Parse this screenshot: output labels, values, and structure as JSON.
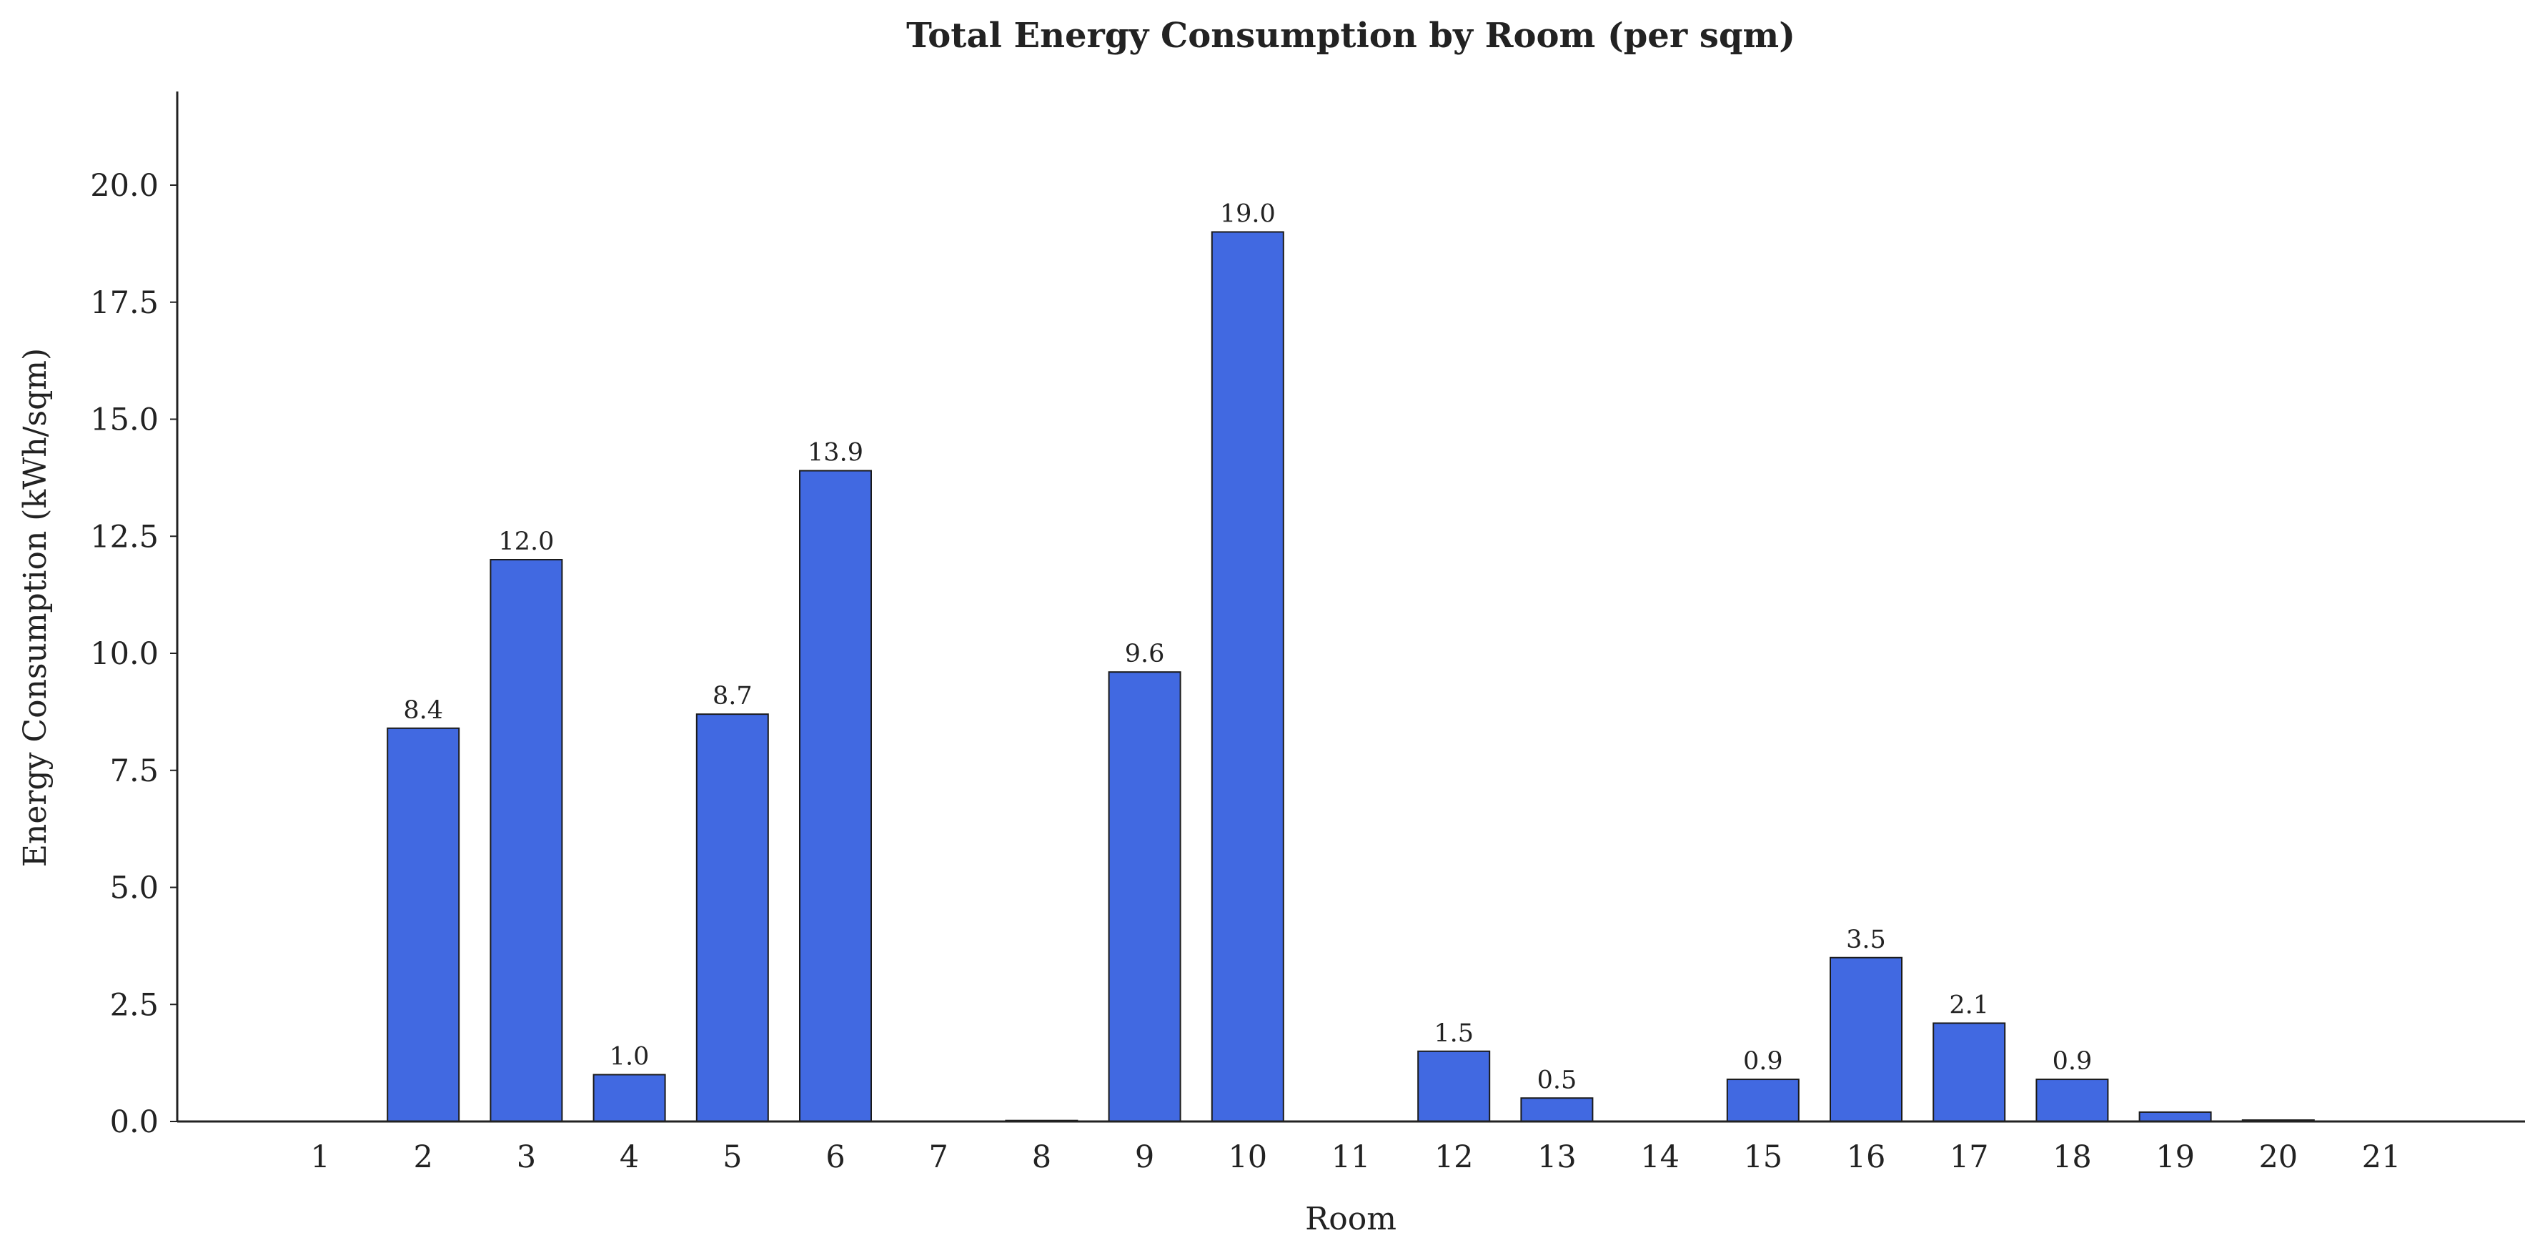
{
  "chart_data": {
    "type": "bar",
    "title": "Total Energy Consumption by Room (per sqm)",
    "xlabel": "Room",
    "ylabel": "Energy Consumption (kWh/sqm)",
    "categories": [
      "1",
      "2",
      "3",
      "4",
      "5",
      "6",
      "7",
      "8",
      "9",
      "10",
      "11",
      "12",
      "13",
      "14",
      "15",
      "16",
      "17",
      "18",
      "19",
      "20",
      "21"
    ],
    "values": [
      0,
      8.4,
      12.0,
      1.0,
      8.7,
      13.9,
      0,
      0.02,
      9.6,
      19.0,
      0,
      1.5,
      0.5,
      0,
      0.9,
      3.5,
      2.1,
      0.9,
      0.2,
      0.03,
      0
    ],
    "data_labels": [
      "",
      "8.4",
      "12.0",
      "1.0",
      "8.7",
      "13.9",
      "",
      "",
      "9.6",
      "19.0",
      "",
      "1.5",
      "0.5",
      "",
      "0.9",
      "3.5",
      "2.1",
      "0.9",
      "",
      "",
      ""
    ],
    "ylim": [
      0,
      22
    ],
    "yticks": [
      0,
      2.5,
      5,
      7.5,
      10,
      12.5,
      15,
      17.5,
      20
    ],
    "ytick_labels": [
      "0.0",
      "2.5",
      "5.0",
      "7.5",
      "10.0",
      "12.5",
      "15.0",
      "17.5",
      "20.0"
    ],
    "bar_color": "#4169E1",
    "edge_color": "#1a1a1a",
    "grid": false
  }
}
